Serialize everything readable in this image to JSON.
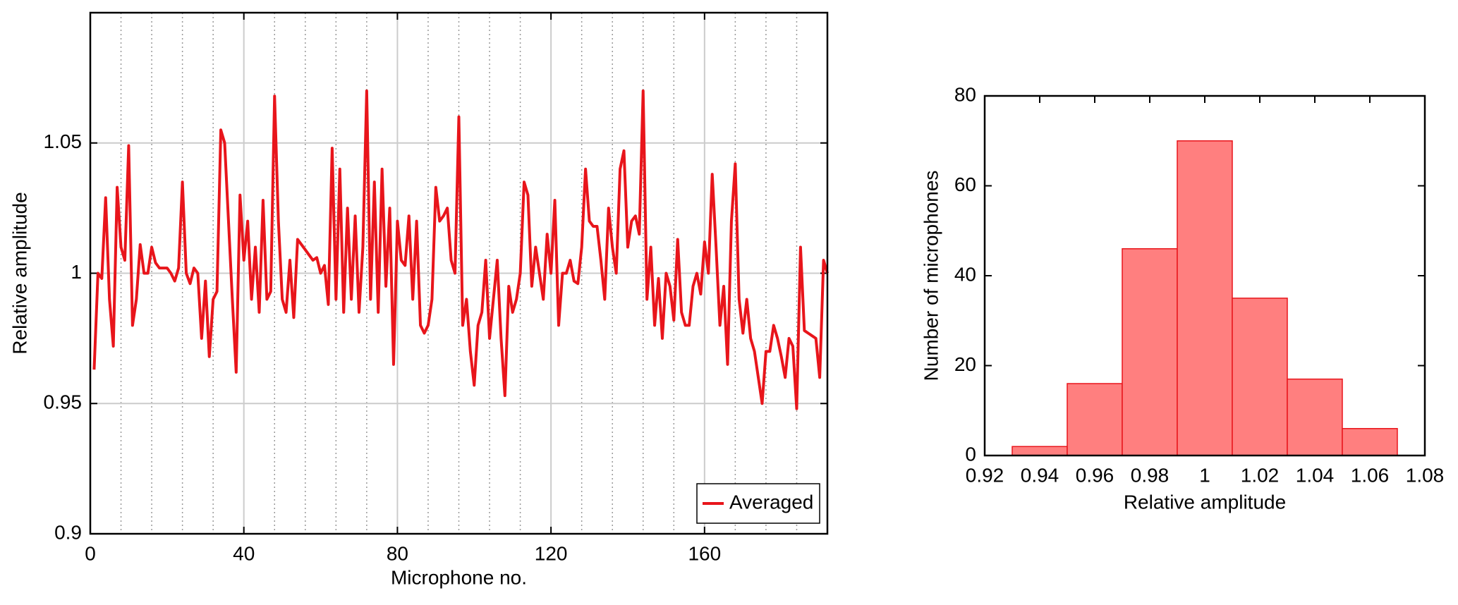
{
  "chart_data": [
    {
      "type": "line",
      "xlabel": "Microphone no.",
      "ylabel": "Relative amplitude",
      "x": [
        1,
        2,
        3,
        4,
        5,
        6,
        7,
        8,
        9,
        10,
        11,
        12,
        13,
        14,
        15,
        16,
        17,
        18,
        19,
        20,
        21,
        22,
        23,
        24,
        25,
        26,
        27,
        28,
        29,
        30,
        31,
        32,
        33,
        34,
        35,
        36,
        37,
        38,
        39,
        40,
        41,
        42,
        43,
        44,
        45,
        46,
        47,
        48,
        49,
        50,
        51,
        52,
        53,
        54,
        55,
        56,
        57,
        58,
        59,
        60,
        61,
        62,
        63,
        64,
        65,
        66,
        67,
        68,
        69,
        70,
        71,
        72,
        73,
        74,
        75,
        76,
        77,
        78,
        79,
        80,
        81,
        82,
        83,
        84,
        85,
        86,
        87,
        88,
        89,
        90,
        91,
        92,
        93,
        94,
        95,
        96,
        97,
        98,
        99,
        100,
        101,
        102,
        103,
        104,
        105,
        106,
        107,
        108,
        109,
        110,
        111,
        112,
        113,
        114,
        115,
        116,
        117,
        118,
        119,
        120,
        121,
        122,
        123,
        124,
        125,
        126,
        127,
        128,
        129,
        130,
        131,
        132,
        133,
        134,
        135,
        136,
        137,
        138,
        139,
        140,
        141,
        142,
        143,
        144,
        145,
        146,
        147,
        148,
        149,
        150,
        151,
        152,
        153,
        154,
        155,
        156,
        157,
        158,
        159,
        160,
        161,
        162,
        163,
        164,
        165,
        166,
        167,
        168,
        169,
        170,
        171,
        172,
        173,
        174,
        175,
        176,
        177,
        178,
        179,
        180,
        181,
        182,
        183,
        184,
        185,
        186,
        187,
        188,
        189,
        190,
        191,
        192
      ],
      "series": [
        {
          "name": "Averaged",
          "color": "#e8151b",
          "values": [
            0.963,
            1.0,
            0.998,
            1.029,
            0.99,
            0.972,
            1.033,
            1.01,
            1.005,
            1.049,
            0.98,
            0.99,
            1.011,
            1.0,
            1.0,
            1.01,
            1.004,
            1.002,
            1.002,
            1.002,
            1.0,
            0.997,
            1.002,
            1.035,
            1.0,
            0.996,
            1.002,
            1.0,
            0.975,
            0.997,
            0.968,
            0.99,
            0.993,
            1.055,
            1.05,
            1.02,
            0.99,
            0.962,
            1.03,
            1.005,
            1.02,
            0.99,
            1.01,
            0.985,
            1.028,
            0.99,
            0.993,
            1.068,
            1.02,
            0.99,
            0.985,
            1.005,
            0.983,
            1.013,
            1.011,
            1.009,
            1.007,
            1.005,
            1.006,
            1.0,
            1.003,
            0.988,
            1.048,
            0.99,
            1.04,
            0.985,
            1.025,
            0.99,
            1.022,
            0.985,
            1.01,
            1.07,
            0.99,
            1.035,
            0.985,
            1.04,
            0.995,
            1.025,
            0.965,
            1.02,
            1.005,
            1.003,
            1.022,
            0.99,
            1.02,
            0.98,
            0.977,
            0.98,
            0.99,
            1.033,
            1.02,
            1.022,
            1.025,
            1.005,
            1.0,
            1.06,
            0.98,
            0.99,
            0.97,
            0.957,
            0.98,
            0.985,
            1.005,
            0.975,
            0.99,
            1.005,
            0.975,
            0.953,
            0.995,
            0.985,
            0.99,
            1.0,
            1.035,
            1.03,
            0.995,
            1.01,
            1.0,
            0.99,
            1.015,
            1.0,
            1.028,
            0.98,
            1.0,
            1.0,
            1.005,
            0.997,
            0.996,
            1.01,
            1.04,
            1.02,
            1.018,
            1.018,
            1.005,
            0.99,
            1.025,
            1.01,
            1.0,
            1.04,
            1.047,
            1.01,
            1.02,
            1.022,
            1.015,
            1.07,
            0.99,
            1.01,
            0.98,
            0.998,
            0.975,
            1.0,
            0.995,
            0.982,
            1.013,
            0.985,
            0.98,
            0.98,
            0.995,
            1.0,
            0.992,
            1.012,
            1.0,
            1.038,
            1.01,
            0.98,
            0.995,
            0.965,
            1.02,
            1.042,
            0.99,
            0.977,
            0.99,
            0.975,
            0.97,
            0.96,
            0.95,
            0.97,
            0.97,
            0.98,
            0.975,
            0.968,
            0.96,
            0.975,
            0.972,
            0.948,
            1.01,
            0.978,
            0.977,
            0.976,
            0.975,
            0.96,
            1.005,
            1.0
          ]
        }
      ],
      "xlim": [
        0,
        192
      ],
      "xticks": [
        0,
        40,
        80,
        120,
        160
      ],
      "xgrid_minor": [
        8,
        16,
        24,
        32,
        48,
        56,
        64,
        72,
        88,
        96,
        104,
        112,
        128,
        136,
        144,
        152,
        168,
        176,
        184
      ],
      "ylim": [
        0.9,
        1.1
      ],
      "yticks": [
        0.9,
        0.95,
        1,
        1.05
      ],
      "grid": true,
      "legend": "lower right"
    },
    {
      "type": "histogram",
      "xlabel": "Relative amplitude",
      "ylabel": "Number of microphones",
      "bins": [
        0.93,
        0.95,
        0.97,
        0.99,
        1.01,
        1.03,
        1.05,
        1.07
      ],
      "values": [
        2,
        16,
        46,
        70,
        35,
        17,
        6
      ],
      "color": "#ff7f7f",
      "edgecolor": "#e8151b",
      "xlim": [
        0.92,
        1.08
      ],
      "xticks": [
        0.92,
        0.94,
        0.96,
        0.98,
        1,
        1.02,
        1.04,
        1.06,
        1.08
      ],
      "ylim": [
        0,
        80
      ],
      "yticks": [
        0,
        20,
        40,
        60,
        80
      ]
    }
  ]
}
